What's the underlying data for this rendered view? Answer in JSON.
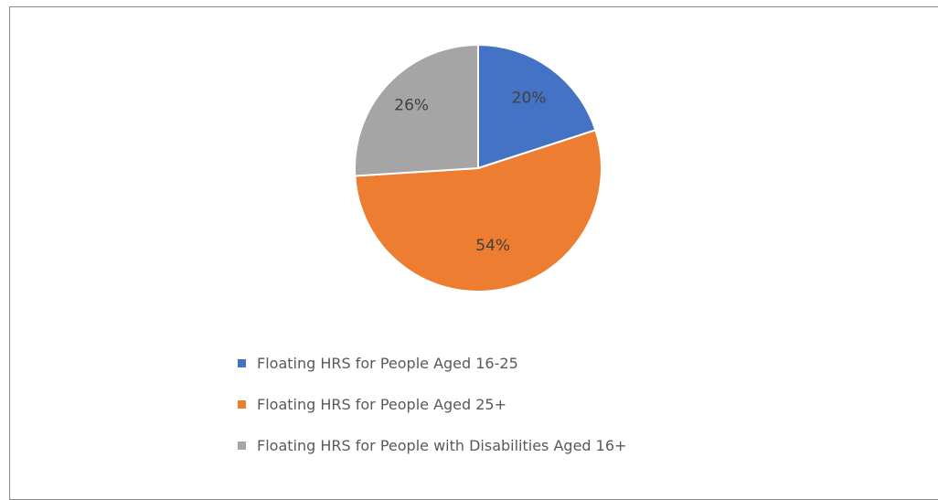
{
  "chart_data": {
    "type": "pie",
    "categories": [
      "Floating HRS for People Aged 16-25",
      "Floating HRS for People Aged 25+",
      "Floating HRS for People with Disabilities Aged 16+"
    ],
    "values": [
      20,
      54,
      26
    ],
    "data_labels": [
      "20%",
      "54%",
      "26%"
    ],
    "colors": [
      "#4472c4",
      "#ed7d31",
      "#a5a5a5"
    ],
    "start_angle": "12 o'clock",
    "direction": "clockwise",
    "legend_position": "bottom"
  }
}
